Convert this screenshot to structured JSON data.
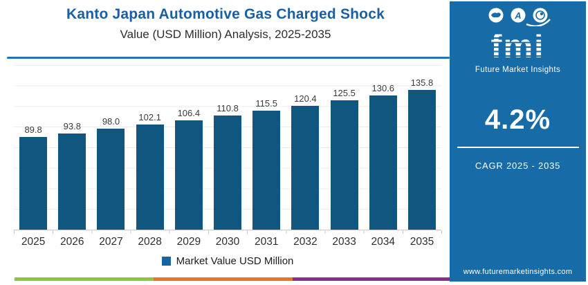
{
  "header": {
    "title_line1": "Kanto Japan Automotive Gas Charged Shock",
    "title_line2": "Value (USD Million) Analysis, 2025-2035"
  },
  "chart_data": {
    "type": "bar",
    "categories": [
      "2025",
      "2026",
      "2027",
      "2028",
      "2029",
      "2030",
      "2031",
      "2032",
      "2033",
      "2034",
      "2035"
    ],
    "values": [
      89.8,
      93.8,
      98.0,
      102.1,
      106.4,
      110.8,
      115.5,
      120.4,
      125.5,
      130.6,
      135.8
    ],
    "value_labels": [
      "89.8",
      "93.8",
      "98.0",
      "102.1",
      "106.4",
      "110.8",
      "115.5",
      "120.4",
      "125.5",
      "130.6",
      "135.8"
    ],
    "title": "Kanto Japan Automotive Gas Charged Shock Value (USD Million) Analysis, 2025-2035",
    "xlabel": "",
    "ylabel": "",
    "ylim": [
      0,
      160
    ],
    "grid": true,
    "gridline_step": 20,
    "legend": [
      "Market Value USD Million"
    ],
    "legend_position": "bottom",
    "bar_color": "#11567f"
  },
  "sidebar": {
    "logo_text": "fmi",
    "logo_subtext": "Future Market Insights",
    "cagr_value": "4.2%",
    "cagr_label": "CAGR 2025 - 2035",
    "website": "www.futuremarketinsights.com"
  },
  "colors": {
    "bar": "#11567f",
    "legend_swatch": "#1565a3",
    "title_blue": "#1a5fa4",
    "divider_blue": "#1e74b6",
    "sidebar_bg": "#176ba7",
    "stripe_green": "#8cc63e",
    "stripe_orange": "#e87424",
    "stripe_purple": "#8e2b8e"
  }
}
